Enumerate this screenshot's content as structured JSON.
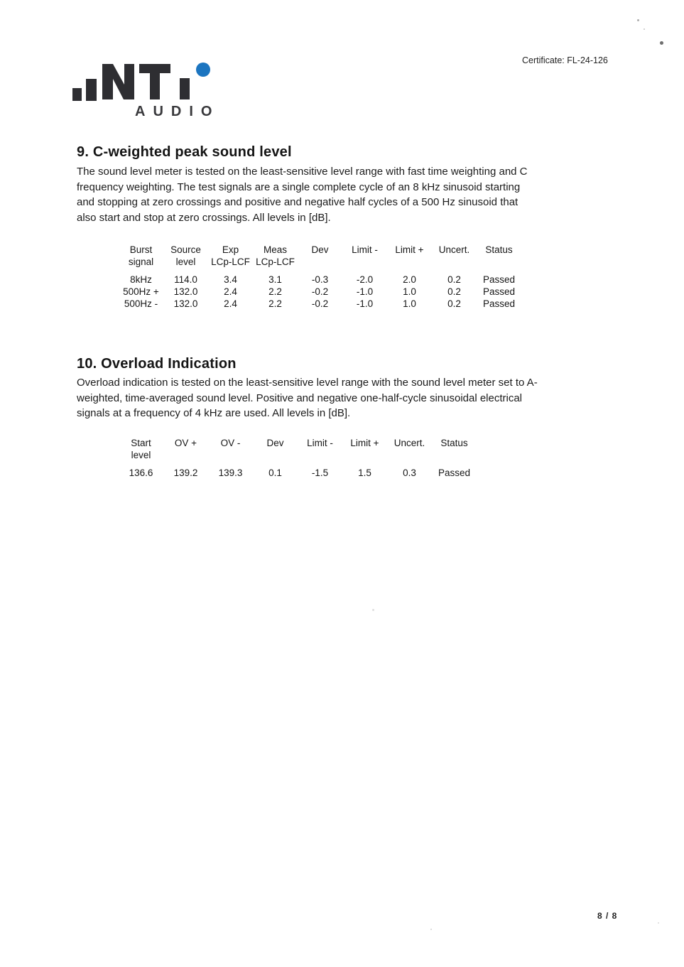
{
  "page": {
    "certificate_label": "Certificate: FL-24-126",
    "page_number": "8 / 8"
  },
  "logo": {
    "name": "NTi",
    "subtitle": "AUDIO",
    "dark_color": "#2e2e32",
    "dot_color": "#1c75c0"
  },
  "sections": [
    {
      "heading": "9. C-weighted peak sound level",
      "body_lines": [
        "The sound level meter is tested on the least-sensitive level range with fast time weighting and C",
        "frequency weighting. The test signals are a single complete cycle of an 8 kHz sinusoid starting",
        "and stopping at zero crossings and positive and negative half cycles of a 500 Hz sinusoid that",
        "also start and stop at zero crossings. All levels in [dB]."
      ],
      "table": {
        "headers": [
          {
            "l1": "Burst",
            "l2": "signal"
          },
          {
            "l1": "Source",
            "l2": "level"
          },
          {
            "l1": "Exp",
            "l2": "LCp-LCF"
          },
          {
            "l1": "Meas",
            "l2": "LCp-LCF"
          },
          {
            "l1": "Dev",
            "l2": ""
          },
          {
            "l1": "Limit -",
            "l2": ""
          },
          {
            "l1": "Limit +",
            "l2": ""
          },
          {
            "l1": "Uncert.",
            "l2": ""
          },
          {
            "l1": "Status",
            "l2": ""
          }
        ],
        "rows": [
          [
            "8kHz",
            "114.0",
            "3.4",
            "3.1",
            "-0.3",
            "-2.0",
            "2.0",
            "0.2",
            "Passed"
          ],
          [
            "500Hz +",
            "132.0",
            "2.4",
            "2.2",
            "-0.2",
            "-1.0",
            "1.0",
            "0.2",
            "Passed"
          ],
          [
            "500Hz -",
            "132.0",
            "2.4",
            "2.2",
            "-0.2",
            "-1.0",
            "1.0",
            "0.2",
            "Passed"
          ]
        ]
      }
    },
    {
      "heading": "10. Overload Indication",
      "body_lines": [
        "Overload indication is tested on the least-sensitive level range with the sound level meter set to A-",
        "weighted, time-averaged sound level. Positive and negative one-half-cycle sinusoidal electrical",
        "signals at a frequency of 4 kHz are used. All levels in [dB]."
      ],
      "table": {
        "headers": [
          {
            "l1": "Start",
            "l2": "level"
          },
          {
            "l1": "OV +",
            "l2": ""
          },
          {
            "l1": "OV -",
            "l2": ""
          },
          {
            "l1": "Dev",
            "l2": ""
          },
          {
            "l1": "Limit -",
            "l2": ""
          },
          {
            "l1": "Limit +",
            "l2": ""
          },
          {
            "l1": "Uncert.",
            "l2": ""
          },
          {
            "l1": "Status",
            "l2": ""
          }
        ],
        "rows": [
          [
            "136.6",
            "139.2",
            "139.3",
            "0.1",
            "-1.5",
            "1.5",
            "0.3",
            "Passed"
          ]
        ]
      }
    }
  ]
}
